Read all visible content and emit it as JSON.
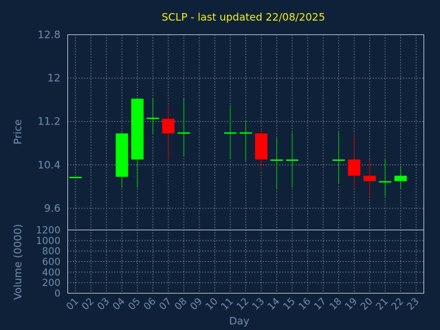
{
  "chart_data": [
    {
      "type": "candlestick",
      "title": "SCLP - last updated 22/08/2025",
      "ylabel": "Price",
      "ylim": [
        9.2,
        12.8
      ],
      "yticks": [
        "12.8",
        "12",
        "11.2",
        "10.4",
        "9.6"
      ],
      "grid": true,
      "colors": {
        "up": "#00ff00",
        "down": "#ff0000",
        "wick_up": "#00cc00",
        "wick_down": "#cc0000"
      },
      "series": [
        {
          "day": "01",
          "open": 10.18,
          "high": 10.18,
          "low": 10.18,
          "close": 10.18
        },
        {
          "day": "04",
          "open": 10.18,
          "high": 11.0,
          "low": 9.98,
          "close": 10.98
        },
        {
          "day": "05",
          "open": 10.5,
          "high": 11.62,
          "low": 9.98,
          "close": 11.62
        },
        {
          "day": "06",
          "open": 11.25,
          "high": 11.62,
          "low": 10.98,
          "close": 11.27
        },
        {
          "day": "07",
          "open": 11.25,
          "high": 11.5,
          "low": 10.5,
          "close": 10.98
        },
        {
          "day": "08",
          "open": 10.98,
          "high": 11.62,
          "low": 10.55,
          "close": 11.0
        },
        {
          "day": "11",
          "open": 10.98,
          "high": 11.5,
          "low": 10.5,
          "close": 11.0
        },
        {
          "day": "12",
          "open": 10.98,
          "high": 11.2,
          "low": 10.48,
          "close": 11.0
        },
        {
          "day": "13",
          "open": 10.98,
          "high": 11.07,
          "low": 10.3,
          "close": 10.5
        },
        {
          "day": "14",
          "open": 10.48,
          "high": 10.9,
          "low": 9.95,
          "close": 10.5
        },
        {
          "day": "15",
          "open": 10.48,
          "high": 11.0,
          "low": 9.98,
          "close": 10.5
        },
        {
          "day": "18",
          "open": 10.48,
          "high": 11.0,
          "low": 10.05,
          "close": 10.5
        },
        {
          "day": "19",
          "open": 10.5,
          "high": 10.98,
          "low": 9.98,
          "close": 10.2
        },
        {
          "day": "20",
          "open": 10.2,
          "high": 10.5,
          "low": 9.8,
          "close": 10.1
        },
        {
          "day": "21",
          "open": 10.08,
          "high": 10.5,
          "low": 9.82,
          "close": 10.1
        },
        {
          "day": "22",
          "open": 10.1,
          "high": 10.38,
          "low": 9.95,
          "close": 10.2
        }
      ]
    },
    {
      "type": "bar",
      "xlabel": "Day",
      "ylabel": "Volume (0000)",
      "ylim": [
        0,
        1200
      ],
      "yticks": [
        "1200",
        "1000",
        "800",
        "600",
        "400",
        "200",
        "0"
      ],
      "categories": [
        "01",
        "02",
        "03",
        "04",
        "05",
        "06",
        "07",
        "08",
        "09",
        "10",
        "11",
        "12",
        "13",
        "14",
        "15",
        "16",
        "17",
        "18",
        "19",
        "20",
        "21",
        "22",
        "23"
      ],
      "values": [
        2,
        0,
        0,
        4,
        6,
        4,
        10,
        4,
        0,
        0,
        3,
        4,
        8,
        3,
        3,
        0,
        0,
        5,
        10,
        8,
        3,
        8,
        0
      ],
      "grid": true
    }
  ]
}
